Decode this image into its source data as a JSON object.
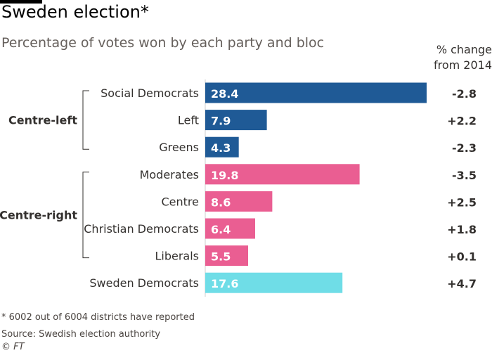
{
  "header": {
    "title": "Sweden election*",
    "subtitle": "Percentage of votes won by each party and bloc",
    "change_header_line1": "% change",
    "change_header_line2": "from 2014"
  },
  "footer": {
    "note": "* 6002 out of 6004 districts have reported",
    "source": "Source: Swedish election authority",
    "credit": "© FT"
  },
  "colors": {
    "centre_left": "#1f5a96",
    "centre_right": "#ea5e92",
    "sweden_democrats": "#6fdde7",
    "axis": "#cccccc",
    "bracket": "#33302e"
  },
  "chart_data": {
    "type": "bar",
    "orientation": "horizontal",
    "categories": [
      "Social Democrats",
      "Left",
      "Greens",
      "Moderates",
      "Centre",
      "Christian Democrats",
      "Liberals",
      "Sweden Democrats"
    ],
    "values": [
      28.4,
      7.9,
      4.3,
      19.8,
      8.6,
      6.4,
      5.5,
      17.6
    ],
    "change_from_2014": [
      "-2.8",
      "+2.2",
      "-2.3",
      "-3.5",
      "+2.5",
      "+1.8",
      "+0.1",
      "+4.7"
    ],
    "bloc": [
      "centre_left",
      "centre_left",
      "centre_left",
      "centre_right",
      "centre_right",
      "centre_right",
      "centre_right",
      "sweden_democrats"
    ],
    "groups": [
      {
        "label": "Centre-left",
        "from": 0,
        "to": 2
      },
      {
        "label": "Centre-right",
        "from": 3,
        "to": 6
      }
    ],
    "xlim": [
      0,
      28.4
    ],
    "grid": false,
    "legend": false
  }
}
